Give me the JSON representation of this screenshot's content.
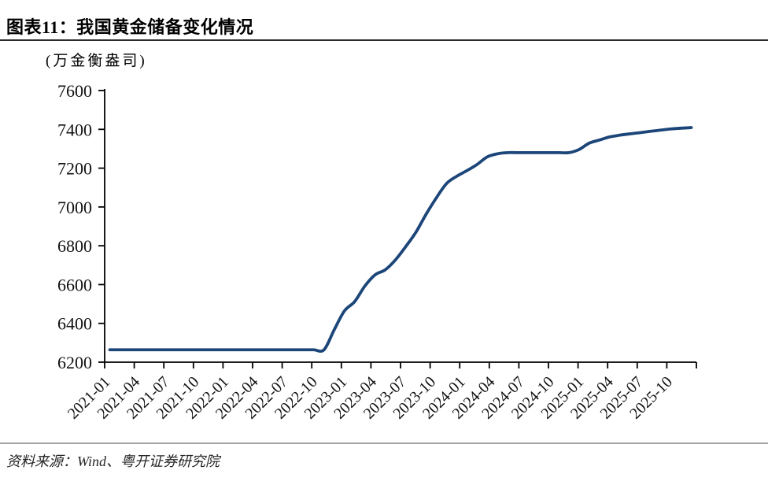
{
  "header": {
    "title": "图表11：我国黄金储备变化情况"
  },
  "footer": {
    "source": "资料来源：Wind、粤开证券研究院"
  },
  "chart_data": {
    "type": "line",
    "title": "图表11：我国黄金储备变化情况",
    "unit_label": "(万金衡盎司)",
    "xlabel": "",
    "ylabel": "万金衡盎司",
    "ylim": [
      6200,
      7600
    ],
    "grid": false,
    "legend": "none",
    "colors": {
      "line": "#1c4679",
      "axis": "#000000",
      "tick_label": "#111111"
    },
    "y_ticks": [
      6200,
      6400,
      6600,
      6800,
      7000,
      7200,
      7400,
      7600
    ],
    "x_tick_labels": [
      "2021-01",
      "2021-04",
      "2021-07",
      "2021-10",
      "2022-01",
      "2022-04",
      "2022-07",
      "2022-10",
      "2023-01",
      "2023-04",
      "2023-07",
      "2023-10",
      "2024-01",
      "2024-04",
      "2024-07",
      "2024-10",
      "2025-01",
      "2025-04",
      "2025-07",
      "2025-10"
    ],
    "series_name": "我国黄金储备",
    "points": [
      [
        "2021-01",
        6264
      ],
      [
        "2021-02",
        6264
      ],
      [
        "2021-03",
        6264
      ],
      [
        "2021-04",
        6264
      ],
      [
        "2021-05",
        6264
      ],
      [
        "2021-06",
        6264
      ],
      [
        "2021-07",
        6264
      ],
      [
        "2021-08",
        6264
      ],
      [
        "2021-09",
        6264
      ],
      [
        "2021-10",
        6264
      ],
      [
        "2021-11",
        6264
      ],
      [
        "2021-12",
        6264
      ],
      [
        "2022-01",
        6264
      ],
      [
        "2022-02",
        6264
      ],
      [
        "2022-03",
        6264
      ],
      [
        "2022-04",
        6264
      ],
      [
        "2022-05",
        6264
      ],
      [
        "2022-06",
        6264
      ],
      [
        "2022-07",
        6264
      ],
      [
        "2022-08",
        6264
      ],
      [
        "2022-09",
        6264
      ],
      [
        "2022-10",
        6264
      ],
      [
        "2022-11",
        6367
      ],
      [
        "2022-12",
        6464
      ],
      [
        "2023-01",
        6512
      ],
      [
        "2023-02",
        6592
      ],
      [
        "2023-03",
        6650
      ],
      [
        "2023-04",
        6676
      ],
      [
        "2023-05",
        6727
      ],
      [
        "2023-06",
        6795
      ],
      [
        "2023-07",
        6869
      ],
      [
        "2023-08",
        6962
      ],
      [
        "2023-09",
        7046
      ],
      [
        "2023-10",
        7120
      ],
      [
        "2023-11",
        7158
      ],
      [
        "2023-12",
        7187
      ],
      [
        "2024-01",
        7219
      ],
      [
        "2024-02",
        7258
      ],
      [
        "2024-03",
        7274
      ],
      [
        "2024-04",
        7280
      ],
      [
        "2024-05",
        7280
      ],
      [
        "2024-06",
        7280
      ],
      [
        "2024-07",
        7280
      ],
      [
        "2024-08",
        7280
      ],
      [
        "2024-09",
        7280
      ],
      [
        "2024-10",
        7280
      ],
      [
        "2024-11",
        7296
      ],
      [
        "2024-12",
        7329
      ],
      [
        "2025-01",
        7345
      ],
      [
        "2025-02",
        7361
      ],
      [
        "2025-03",
        7370
      ],
      [
        "2025-04",
        7377
      ],
      [
        "2025-05",
        7383
      ],
      [
        "2025-06",
        7390
      ],
      [
        "2025-07",
        7396
      ],
      [
        "2025-08",
        7402
      ],
      [
        "2025-09",
        7406
      ],
      [
        "2025-10",
        7409
      ]
    ]
  }
}
